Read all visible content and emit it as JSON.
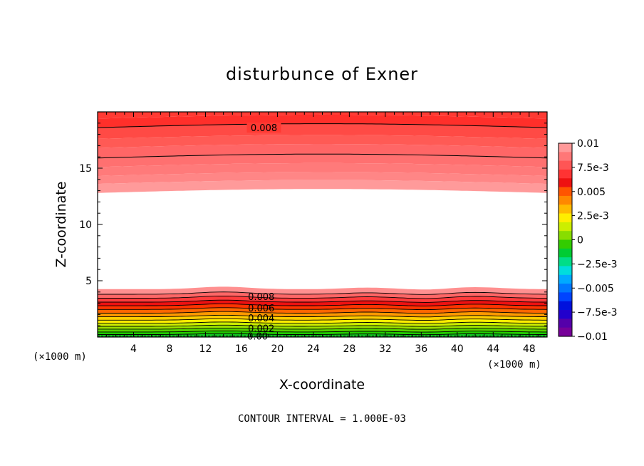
{
  "chart_data": {
    "type": "contour",
    "title": "disturbunce of Exner",
    "xlabel": "X-coordinate",
    "ylabel": "Z-coordinate",
    "x_unit": "(×1000 m)",
    "z_unit": "(×1000 m)",
    "xlim": [
      0,
      50
    ],
    "zlim": [
      0,
      20
    ],
    "x_ticks": [
      "4",
      "8",
      "12",
      "16",
      "20",
      "24",
      "28",
      "32",
      "36",
      "40",
      "44",
      "48"
    ],
    "z_ticks": [
      "5",
      "10",
      "15"
    ],
    "contour_interval_note": "CONTOUR INTERVAL = 1.000E-03",
    "contour_labels": [
      {
        "text": "0.008",
        "x": 18.5,
        "z": 18.6
      },
      {
        "text": "0.008",
        "x": 18.2,
        "z": 3.6
      },
      {
        "text": "0.006",
        "x": 18.2,
        "z": 2.6
      },
      {
        "text": "0.004",
        "x": 18.2,
        "z": 1.7
      },
      {
        "text": "0.002",
        "x": 18.2,
        "z": 0.8
      },
      {
        "text": "0.00",
        "x": 17.8,
        "z": 0.1
      }
    ],
    "colorbar": {
      "labels": [
        "0.01",
        "7.5e-3",
        "0.005",
        "2.5e-3",
        "0",
        "−2.5e-3",
        "−0.005",
        "−7.5e-3",
        "−0.01"
      ],
      "colors": [
        "#ff9999",
        "#ff7777",
        "#ff5555",
        "#ff3333",
        "#ee1111",
        "#ff5500",
        "#ff8800",
        "#ffbb00",
        "#ffee00",
        "#ccee00",
        "#88dd00",
        "#33cc00",
        "#00cc33",
        "#00dd88",
        "#00dddd",
        "#00aaff",
        "#0077ff",
        "#0044ff",
        "#0011dd",
        "#2200cc",
        "#5500aa",
        "#770099"
      ]
    }
  }
}
